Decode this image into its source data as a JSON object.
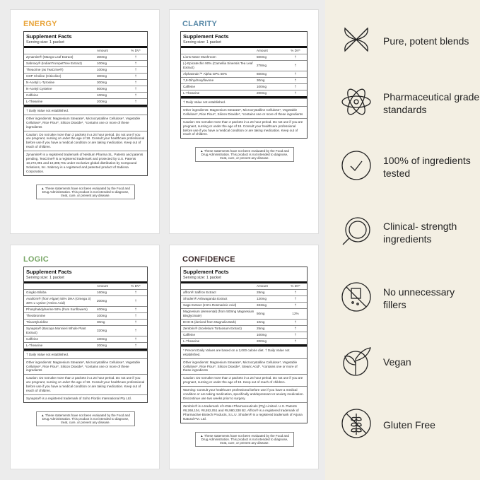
{
  "panels": [
    {
      "title": "ENERGY",
      "color": "#e8a43a",
      "facts_title": "Supplement Facts",
      "serving": "Serving size: 1 packet",
      "col_amount": "Amount",
      "col_dv": "% DV*",
      "rows": [
        [
          "Zynamite® (Mango Leaf Extract)",
          "300mg",
          "†"
        ],
        [
          "Sabroxy® (IndianTrumpetTree Extract)",
          "100mg",
          "†"
        ],
        [
          "Theacrine (as TeaCrine®)",
          "100mg",
          "†"
        ],
        [
          "CDP Choline (Citicoline)",
          "300mg",
          "†"
        ],
        [
          "N-Acetyl L-Tyrosine",
          "300mg",
          "†"
        ],
        [
          "N-Acetyl Cysteine",
          "500mg",
          "†"
        ],
        [
          "Caffeine",
          "100mg",
          "†"
        ],
        [
          "L-Theanine",
          "200mg",
          "†"
        ]
      ],
      "notes": [
        "† Daily Value not established.",
        "Other ingredients: Magnesium Stearate*, Microcrystalline Cellulose*, Vegetable Cellulose*, Rice Flour*, Silicon Dioxide*, *contains one or more of these ingredients",
        "Caution: Do not take more than 2 packets in a 24 hour period. Do not use if you are pregnant, nursing or under the age of 18. Consult your healthcare professional before use if you have a medical condition or are taking medication. Keep out of reach of children.",
        "Zynamite® is a registered trademark of Nektium Pharma SL. Patents and patents pending. TeaCrine® is a registered trademark and protected by U.S. Patents 10,272,091 and 10,398,701 under exclusive global distribution by Compound Solutions, Inc. Sabroxy is a registered and patented product of Sabinsa Corporation."
      ],
      "fda": "▲ These statements have not been evaluated by the Food and Drug Administration. This product is not intended to diagnose, treat, cure, or prevent any disease."
    },
    {
      "title": "CLARITY",
      "color": "#5a8aa8",
      "facts_title": "Supplement Facts",
      "serving": "Serving size: 1 packet",
      "col_amount": "Amount",
      "col_dv": "% DV*",
      "rows": [
        [
          "Lions Mane Mushroom",
          "500mg",
          "†"
        ],
        [
          "(-)-Epicatechin 90% (Camellia Sinensis Tea Leaf Extract)",
          "278mg",
          "†"
        ],
        [
          "AlphaGrain™ Alpha GPC 50%",
          "600mg",
          "†"
        ],
        [
          "7,8-Dihydroxyflavone",
          "30mg",
          "†"
        ],
        [
          "Caffeine",
          "100mg",
          "†"
        ],
        [
          "L-Theanine",
          "200mg",
          "†"
        ]
      ],
      "notes": [
        "† Daily Value not established.",
        "Other ingredients: Magnesium Stearate*, Microcrystalline Cellulose*, Vegetable Cellulose*, Rice Flour*, Silicon Dioxide*, *contains one or more of these ingredients",
        "Caution: Do not take more than 2 packets in a 24 hour period. Do not use if you are pregnant, nursing or under the age of 18. Consult your healthcare professional before use if you have a medical condition or are taking medication. Keep out of reach of children."
      ],
      "fda": "▲ These statements have not been evaluated by the Food and Drug Administration. This product is not intended to diagnose, treat, cure, or prevent any disease."
    },
    {
      "title": "LOGIC",
      "color": "#7aa868",
      "facts_title": "Supplement Facts",
      "serving": "Serving size: 1 packet",
      "col_amount": "Amount",
      "col_dv": "% DV*",
      "rows": [
        [
          "Gingko Biloba",
          "160mg",
          "†"
        ],
        [
          "AvailOm® (from Algae) 50% DHA (Omega 3) 30% L-Lysine (Amino Acid)",
          "200mg",
          "†"
        ],
        [
          "Phosphatidylserine 50% (from Sunflowers)",
          "400mg",
          "†"
        ],
        [
          "Theobromine",
          "100mg",
          "†"
        ],
        [
          "Triacetyluridine",
          "30mg",
          "†"
        ],
        [
          "Synapsa® (Bacopa Monnieri Whole Plant Extract)",
          "320mg",
          "†"
        ],
        [
          "Caffeine",
          "100mg",
          "†"
        ],
        [
          "L-Theanine",
          "200mg",
          "†"
        ]
      ],
      "notes": [
        "† Daily Value not established.",
        "Other ingredients: Magnesium Stearate*, Microcrystalline Cellulose*, Vegetable Cellulose*, Rice Flour*, Silicon Dioxide*, *contains one or more of these ingredients",
        "Caution: Do not take more than 2 packets in a 24 hour period. Do not use if you are pregnant, nursing or under the age of 18. Consult your healthcare professional before use if you have a medical condition or are taking medication. Keep out of reach of children.",
        "Synapsa® is a registered trademark of Soho Flordis International Pty Ltd."
      ],
      "fda": "▲ These statements have not been evaluated by the Food and Drug Administration. This product is not intended to diagnose, treat, cure, or prevent any disease."
    },
    {
      "title": "CONFIDENCE",
      "color": "#3a2828",
      "facts_title": "Supplement Facts",
      "serving": "Serving size: 1 packet",
      "col_amount": "Amount",
      "col_dv": "% DV*",
      "rows": [
        [
          "affron® Saffron Extract",
          "28mg",
          "†"
        ],
        [
          "Shoden® Ashwaganda Extract",
          "120mg",
          "†"
        ],
        [
          "Sage Extract (2.5% Rosmarinic Acid)",
          "333mg",
          "†"
        ],
        [
          "Magnesium (elemental) (from 500mg Magnesium Bisglycinate)",
          "50mg",
          "12%"
        ],
        [
          "DHH-B (derived from Magnolia Bark)",
          "10mg",
          "†"
        ],
        [
          "Zembrin® (Sceletium Tortuosum Extract)",
          "25mg",
          "†"
        ],
        [
          "Caffeine",
          "100mg",
          "†"
        ],
        [
          "L-Theanine",
          "200mg",
          "†"
        ]
      ],
      "notes": [
        "* Percent Daily Values are based on a 2,000 calorie diet. † Daily Value not established.",
        "Other ingredients: Magnesium Stearate*, Microcrystalline Cellulose*, Vegetable Cellulose*, Rice Flour*, Silicon Dioxide*, Stearic Acid*. *contains one or more of these ingredients",
        "Caution: Do not take more than 2 packets in a 24 hour period. Do not use if you are pregnant, nursing or under the age of 18. Keep out of reach of children.",
        "Warning: Consult your healthcare professional before use if you have a medical condition or are taking medication, specifically antidepressant or anxiety medication. Discontinue use two weeks prior to surgery.",
        "Zembrin® is a trademark of HG&H Pharmaceuticals (Pty) Limited. U.S. Patents #8,268,104, #8,552,051 and #8,980,338 B2. Affron® is a registered trademark of Pharmactive Biotech Products, S.L.U. Shoden® is a registered trademark of Arjuna Natural Pvt. Ltd."
      ],
      "fda": "▲ These statements have not been evaluated by the Food and Drug Administration. This product is not intended to diagnose, treat, cure, or prevent any disease."
    }
  ],
  "features": [
    {
      "icon": "leaves-icon",
      "label": "Pure, potent blends"
    },
    {
      "icon": "atom-icon",
      "label": "Pharmaceutical grade standards"
    },
    {
      "icon": "checkmark-circle-icon",
      "label": "100% of ingredients tested"
    },
    {
      "icon": "magnifier-dish-icon",
      "label": "Clinical- strength ingredients"
    },
    {
      "icon": "no-fillers-icon",
      "label": "No unnecessary fillers"
    },
    {
      "icon": "plant-icon",
      "label": "Vegan"
    },
    {
      "icon": "no-wheat-icon",
      "label": "Gluten Free"
    }
  ]
}
